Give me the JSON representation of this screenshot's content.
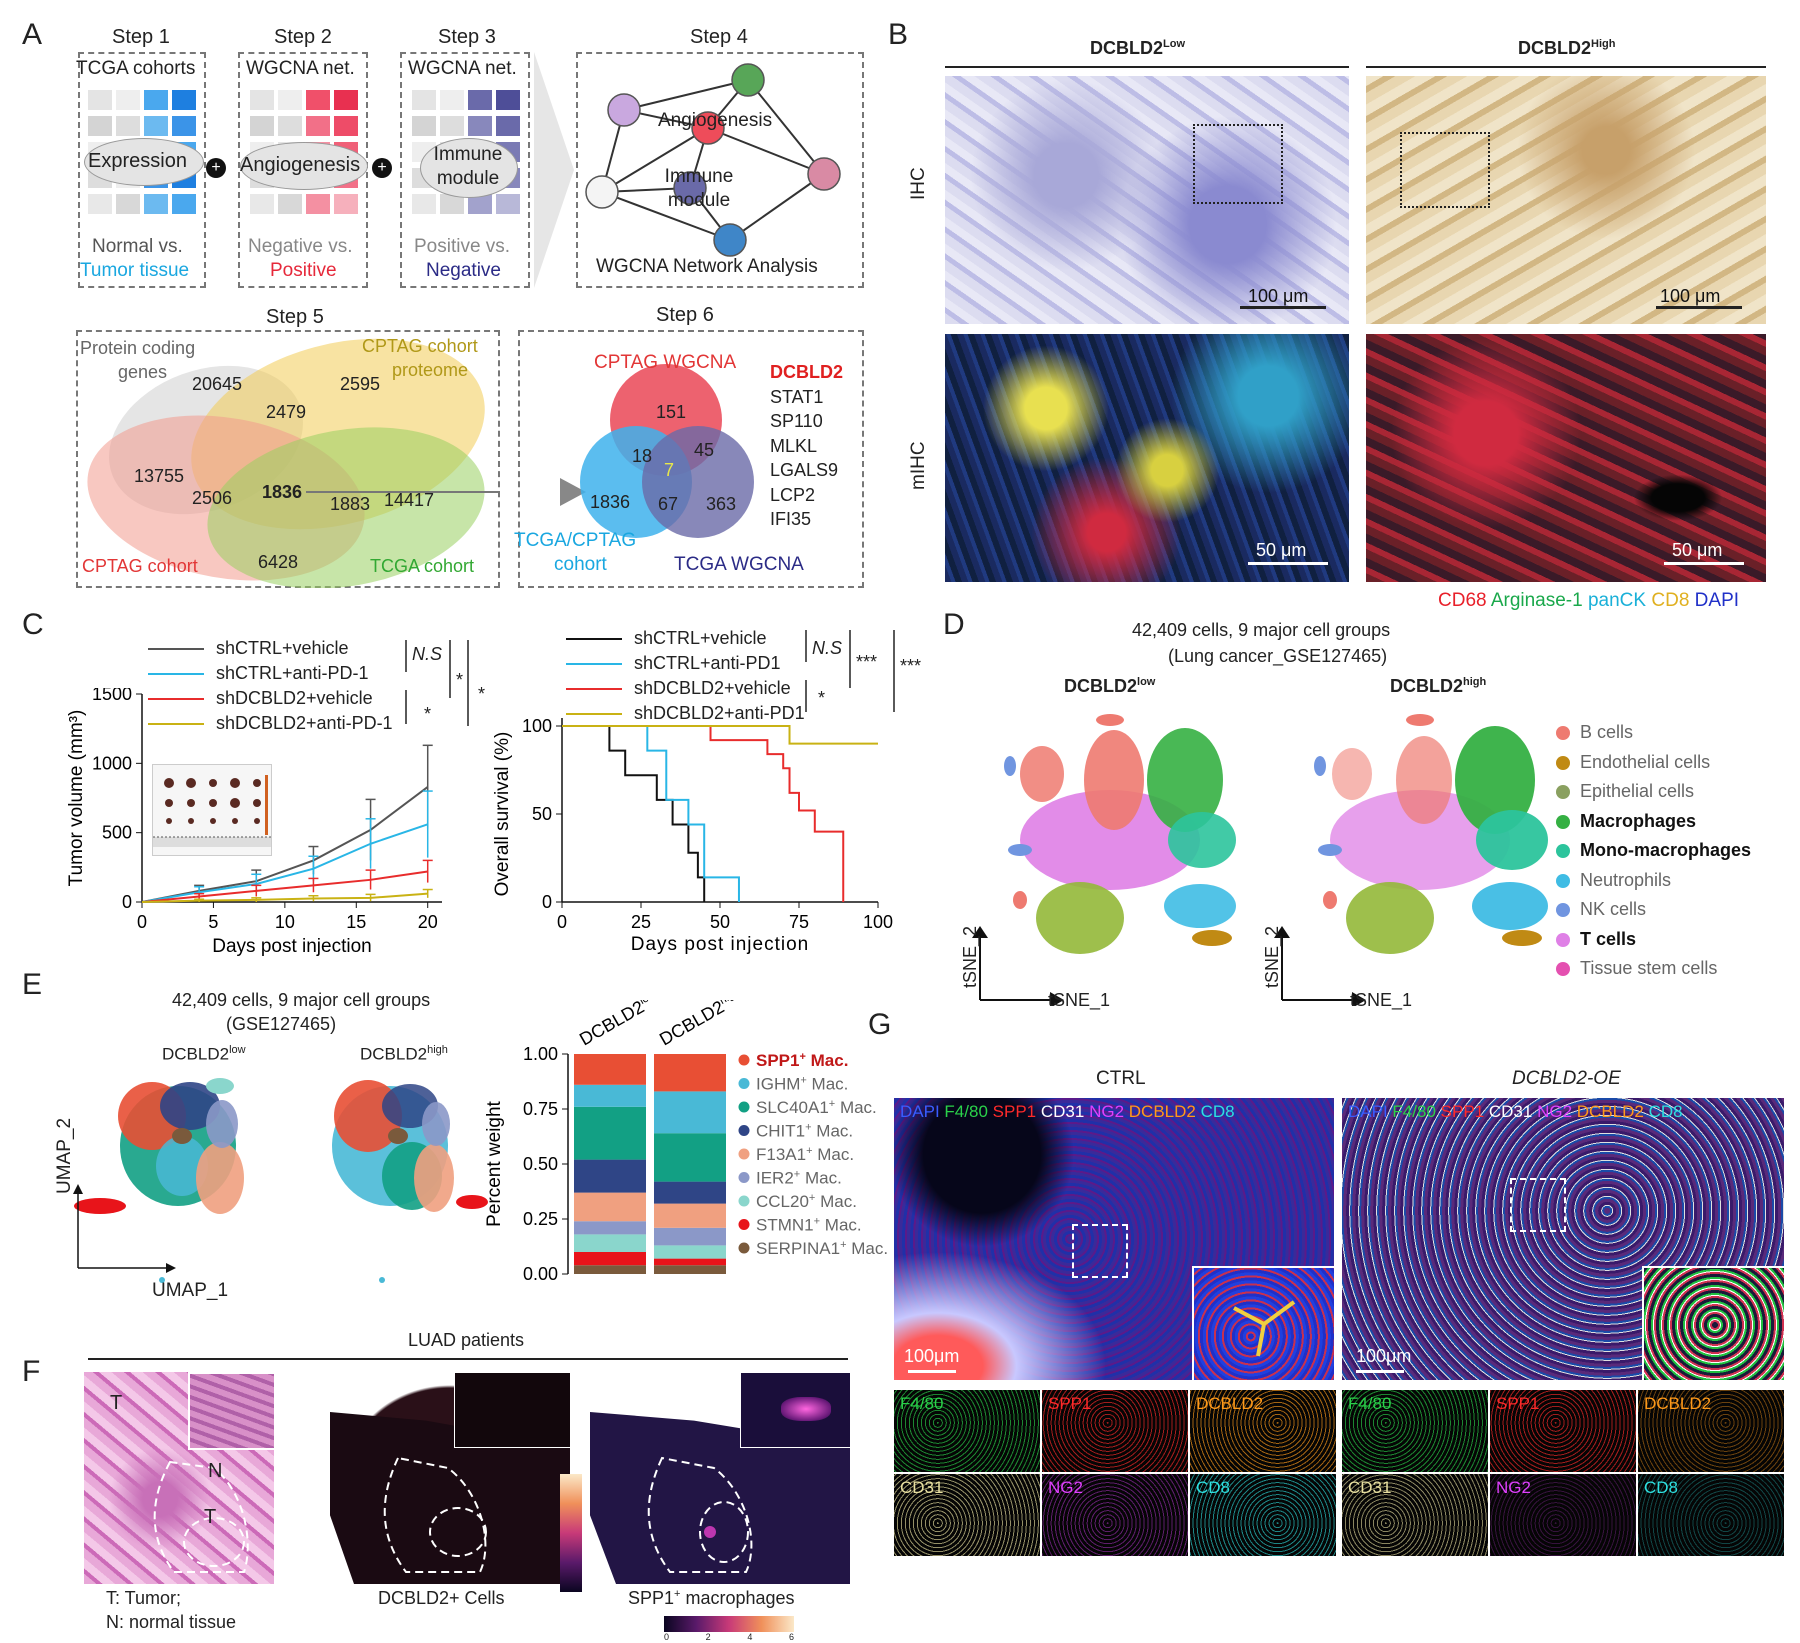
{
  "panels": {
    "A": "A",
    "B": "B",
    "C": "C",
    "D": "D",
    "E": "E",
    "F": "F",
    "G": "G"
  },
  "a": {
    "step1": {
      "title": "Step 1",
      "head": "TCGA cohorts",
      "label": "Expression",
      "foot1": "Normal vs.",
      "foot2": "Tumor tissue"
    },
    "step2": {
      "title": "Step 2",
      "head": "WGCNA net.",
      "label": "Angiogenesis",
      "foot1": "Negative vs.",
      "foot2": "Positive"
    },
    "step3": {
      "title": "Step 3",
      "head": "WGCNA net.",
      "label1": "Immune",
      "label2": "module",
      "foot1": "Positive vs.",
      "foot2": "Negative"
    },
    "step4": {
      "title": "Step 4",
      "n1": "Angiogenesis",
      "n2a": "Immune",
      "n2b": "module",
      "foot": "WGCNA Network Analysis"
    },
    "step5": {
      "title": "Step 5",
      "set_protein1": "Protein coding",
      "set_protein2": "genes",
      "set_proteome1": "CPTAG cohort",
      "set_proteome2": "proteome",
      "set_cptag": "CPTAG cohort",
      "set_tcga": "TCGA cohort",
      "n20645": "20645",
      "n2595": "2595",
      "n2479": "2479",
      "n13755": "13755",
      "n2506": "2506",
      "n1836": "1836",
      "n1883": "1883",
      "n14417": "14417",
      "n6428": "6428"
    },
    "step6": {
      "title": "Step 6",
      "set_cptag": "CPTAG WGCNA",
      "set_tcgacptag1": "TCGA/CPTAG",
      "set_tcgacptag2": "cohort",
      "set_tcga": "TCGA WGCNA",
      "n151": "151",
      "n18": "18",
      "n45": "45",
      "n7": "7",
      "n1836": "1836",
      "n67": "67",
      "n363": "363",
      "genes": [
        "DCBLD2",
        "STAT1",
        "SP110",
        "MLKL",
        "LGALS9",
        "LCP2",
        "IFI35"
      ]
    }
  },
  "b": {
    "low": "DCBLD2",
    "low_sup": "Low",
    "high": "DCBLD2",
    "high_sup": "High",
    "row1": "IHC",
    "row2": "mIHC",
    "scale100": "100 μm",
    "scale50": "50 μm",
    "legend": [
      {
        "t": "CD68",
        "c": "#e8202a"
      },
      {
        "t": "Arginase-1",
        "c": "#1aa84b"
      },
      {
        "t": "panCK",
        "c": "#1ab0d8"
      },
      {
        "t": "CD8",
        "c": "#e0b020"
      },
      {
        "t": "DAPI",
        "c": "#2030c8"
      }
    ]
  },
  "c": {
    "legend1": [
      "shCTRL+vehicle",
      "shCTRL+anti-PD-1",
      "shDCBLD2+vehicle",
      "shDCBLD2+anti-PD-1"
    ],
    "legend2": [
      "shCTRL+vehicle",
      "shCTRL+anti-PD1",
      "shDCBLD2+vehicle",
      "shDCBLD2+anti-PD1"
    ],
    "sig1": [
      "N.S",
      "*",
      "*",
      "*"
    ],
    "sig2": [
      "N.S",
      "***",
      "***",
      "*"
    ],
    "ylabel1": "Tumor volume (mm³)",
    "xlabel1": "Days post injection",
    "ylabel2": "Overall  survival (%)",
    "xlabel2": "Days post injection",
    "yticks1": [
      "0",
      "500",
      "1000",
      "1500"
    ],
    "xticks1": [
      "0",
      "5",
      "10",
      "15",
      "20"
    ],
    "yticks2": [
      "0",
      "50",
      "100"
    ],
    "xticks2": [
      "0",
      "25",
      "50",
      "75",
      "100"
    ]
  },
  "chart_data": [
    {
      "type": "line",
      "title": "",
      "xlabel": "Days post injection",
      "ylabel": "Tumor volume (mm³)",
      "xlim": [
        0,
        21
      ],
      "ylim": [
        0,
        1500
      ],
      "x": [
        0,
        4,
        8,
        12,
        16,
        20
      ],
      "series": [
        {
          "name": "shCTRL+vehicle",
          "color": "#555555",
          "values": [
            0,
            80,
            150,
            300,
            520,
            830
          ],
          "err": [
            0,
            40,
            80,
            100,
            220,
            300
          ]
        },
        {
          "name": "shCTRL+anti-PD-1",
          "color": "#29b6e6",
          "values": [
            0,
            70,
            130,
            240,
            420,
            560
          ],
          "err": [
            0,
            40,
            70,
            90,
            180,
            240
          ]
        },
        {
          "name": "shDCBLD2+vehicle",
          "color": "#e82c2c",
          "values": [
            0,
            40,
            80,
            120,
            160,
            220
          ],
          "err": [
            0,
            20,
            40,
            50,
            70,
            80
          ]
        },
        {
          "name": "shDCBLD2+anti-PD-1",
          "color": "#c9b214",
          "values": [
            0,
            10,
            15,
            25,
            30,
            60
          ],
          "err": [
            0,
            10,
            15,
            20,
            25,
            30
          ]
        }
      ]
    },
    {
      "type": "line",
      "title": "",
      "xlabel": "Days post injection",
      "ylabel": "Overall  survival (%)",
      "xlim": [
        0,
        100
      ],
      "ylim": [
        0,
        100
      ],
      "series": [
        {
          "name": "shCTRL+vehicle",
          "color": "#111111",
          "steps": [
            [
              0,
              100
            ],
            [
              15,
              100
            ],
            [
              15,
              86
            ],
            [
              20,
              86
            ],
            [
              20,
              72
            ],
            [
              30,
              72
            ],
            [
              30,
              58
            ],
            [
              35,
              58
            ],
            [
              35,
              44
            ],
            [
              40,
              44
            ],
            [
              40,
              28
            ],
            [
              43,
              28
            ],
            [
              43,
              14
            ],
            [
              45,
              14
            ],
            [
              45,
              0
            ]
          ]
        },
        {
          "name": "shCTRL+anti-PD1",
          "color": "#29b6e6",
          "steps": [
            [
              0,
              100
            ],
            [
              27,
              100
            ],
            [
              27,
              86
            ],
            [
              33,
              86
            ],
            [
              33,
              58
            ],
            [
              40,
              58
            ],
            [
              40,
              44
            ],
            [
              45,
              44
            ],
            [
              45,
              14
            ],
            [
              56,
              14
            ],
            [
              56,
              0
            ]
          ]
        },
        {
          "name": "shDCBLD2+vehicle",
          "color": "#e82c2c",
          "steps": [
            [
              0,
              100
            ],
            [
              47,
              100
            ],
            [
              47,
              92
            ],
            [
              65,
              92
            ],
            [
              65,
              84
            ],
            [
              70,
              84
            ],
            [
              70,
              76
            ],
            [
              72,
              76
            ],
            [
              72,
              62
            ],
            [
              75,
              62
            ],
            [
              75,
              52
            ],
            [
              80,
              52
            ],
            [
              80,
              40
            ],
            [
              89,
              40
            ],
            [
              89,
              0
            ]
          ]
        },
        {
          "name": "shDCBLD2+anti-PD1",
          "color": "#c9b214",
          "steps": [
            [
              0,
              100
            ],
            [
              72,
              100
            ],
            [
              72,
              90
            ],
            [
              100,
              90
            ]
          ]
        }
      ]
    },
    {
      "type": "bar",
      "stacked": true,
      "title": "",
      "xlabel": "",
      "ylabel": "Percent weight",
      "ylim": [
        0,
        1
      ],
      "categories": [
        "DCBLD2low",
        "DCBLD2high"
      ],
      "series": [
        {
          "name": "SERPINA1+ Mac.",
          "color": "#7a5a3c",
          "values": [
            0.04,
            0.04
          ]
        },
        {
          "name": "STMN1+ Mac.",
          "color": "#e8141a",
          "values": [
            0.06,
            0.03
          ]
        },
        {
          "name": "CCL20+ Mac.",
          "color": "#8ad6cc",
          "values": [
            0.08,
            0.06
          ]
        },
        {
          "name": "IER2+ Mac.",
          "color": "#8b98c8",
          "values": [
            0.06,
            0.08
          ]
        },
        {
          "name": "F13A1+ Mac.",
          "color": "#f0a080",
          "values": [
            0.13,
            0.11
          ]
        },
        {
          "name": "CHIT1+ Mac.",
          "color": "#2f4586",
          "values": [
            0.15,
            0.1
          ]
        },
        {
          "name": "SLC40A1+ Mac.",
          "color": "#12a084",
          "values": [
            0.24,
            0.22
          ]
        },
        {
          "name": "IGHM+ Mac.",
          "color": "#49b9d6",
          "values": [
            0.1,
            0.19
          ]
        },
        {
          "name": "SPP1+ Mac.",
          "color": "#e84f34",
          "values": [
            0.14,
            0.17
          ]
        }
      ]
    }
  ],
  "d": {
    "title1": "42,409 cells, 9 major cell groups",
    "title2": "(Lung cancer_GSE127465)",
    "low": "DCBLD2",
    "low_sup": "low",
    "high": "DCBLD2",
    "high_sup": "high",
    "x": "tSNE_1",
    "y": "tSNE_2",
    "legend": [
      {
        "t": "B cells",
        "c": "#ee7a70",
        "b": false
      },
      {
        "t": "Endothelial cells",
        "c": "#c08a14",
        "b": false
      },
      {
        "t": "Epithelial cells",
        "c": "#8aa060",
        "b": false
      },
      {
        "t": "Macrophages",
        "c": "#35b043",
        "b": true
      },
      {
        "t": "Mono-macrophages",
        "c": "#2cc49c",
        "b": true
      },
      {
        "t": "Neutrophils",
        "c": "#3fbce4",
        "b": false
      },
      {
        "t": "NK cells",
        "c": "#7095e0",
        "b": false
      },
      {
        "t": "T cells",
        "c": "#df80e6",
        "b": true
      },
      {
        "t": "Tissue stem cells",
        "c": "#e450b0",
        "b": false
      }
    ]
  },
  "e": {
    "title1": "42,409 cells, 9 major cell groups",
    "title2": "(GSE127465)",
    "low": "DCBLD2",
    "low_sup": "low",
    "high": "DCBLD2",
    "high_sup": "high",
    "x": "UMAP_1",
    "y": "UMAP_2",
    "ylabel": "Percent weight",
    "yticks": [
      "0.00",
      "0.25",
      "0.50",
      "0.75",
      "1.00"
    ],
    "cat_low": "DCBLD2",
    "cat_low_sup": "low",
    "cat_high": "DCBLD2",
    "cat_high_sup": "high",
    "legend": [
      {
        "t": "SPP1",
        "s": "+",
        "u": " Mac.",
        "c": "#e84f34",
        "b": true
      },
      {
        "t": "IGHM",
        "s": "+",
        "u": " Mac.",
        "c": "#49b9d6"
      },
      {
        "t": "SLC40A1",
        "s": "+",
        "u": " Mac.",
        "c": "#12a084"
      },
      {
        "t": "CHIT1",
        "s": "+",
        "u": " Mac.",
        "c": "#2f4586"
      },
      {
        "t": "F13A1",
        "s": "+",
        "u": " Mac.",
        "c": "#f0a080"
      },
      {
        "t": "IER2",
        "s": "+",
        "u": " Mac.",
        "c": "#8b98c8"
      },
      {
        "t": "CCL20",
        "s": "+",
        "u": " Mac.",
        "c": "#8ad6cc"
      },
      {
        "t": "STMN1",
        "s": "+",
        "u": " Mac.",
        "c": "#e8141a"
      },
      {
        "t": "SERPINA1",
        "s": "+",
        "u": " Mac.",
        "c": "#7a5a3c"
      }
    ]
  },
  "f": {
    "title": "LUAD patients",
    "T": "T",
    "N": "N",
    "note1": "T: Tumor;",
    "note2": "N: normal tissue",
    "cap2": "DCBLD2+ Cells",
    "cap3a": "SPP1",
    "cap3b": "+",
    "cap3c": " macrophages",
    "cbar": [
      "0",
      "2",
      "4",
      "6"
    ]
  },
  "g": {
    "ctrl": "CTRL",
    "oe": "DCBLD2-OE",
    "merge": [
      {
        "t": "DAPI",
        "c": "#3a5cff"
      },
      {
        "t": "F4/80",
        "c": "#2ad24a"
      },
      {
        "t": "SPP1",
        "c": "#ff2a2a"
      },
      {
        "t": "CD31",
        "c": "#ffffff"
      },
      {
        "t": "NG2",
        "c": "#e040ff"
      },
      {
        "t": "DCBLD2",
        "c": "#ff9a1a"
      },
      {
        "t": "CD8",
        "c": "#2ee0e0"
      }
    ],
    "scale": "100μm",
    "channels": [
      {
        "t": "F4/80",
        "c": "#2ad24a"
      },
      {
        "t": "SPP1",
        "c": "#ff2a2a"
      },
      {
        "t": "DCBLD2",
        "c": "#ff9a1a"
      },
      {
        "t": "CD31",
        "c": "#e8e0a0"
      },
      {
        "t": "NG2",
        "c": "#e040ff"
      },
      {
        "t": "CD8",
        "c": "#2ee0e0"
      }
    ]
  }
}
